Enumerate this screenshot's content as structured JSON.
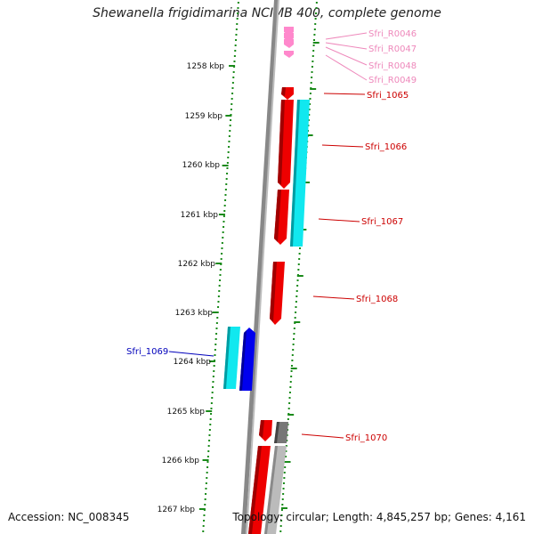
{
  "title": "Shewanella frigidimarina NCIMB 400, complete genome",
  "accession_text": "Accession: NC_008345",
  "topology_text": "Topology: circular; Length: 4,845,257 bp; Genes: 4,161",
  "colors": {
    "ticks": "#1a8a1a",
    "gene_red": "#ee0000",
    "gene_dark_red": "#a00000",
    "gene_cyan": "#11e8ef",
    "gene_blue": "#0000ee",
    "gene_gray": "#777777",
    "gene_light_gray": "#bbbbbb",
    "rna_pink": "#ff88cc",
    "label_pink": "#ee88bb",
    "label_red": "#cc0000",
    "label_blue": "#0000bb"
  },
  "scale": {
    "unit": "kbp",
    "ticks": [
      "1258 kbp",
      "1259 kbp",
      "1260 kbp",
      "1261 kbp",
      "1262 kbp",
      "1263 kbp",
      "1264 kbp",
      "1265 kbp",
      "1266 kbp",
      "1267 kbp"
    ]
  },
  "gene_labels": [
    {
      "text": "Sfri_R0046",
      "color": "label_pink"
    },
    {
      "text": "Sfri_R0047",
      "color": "label_pink"
    },
    {
      "text": "Sfri_R0048",
      "color": "label_pink"
    },
    {
      "text": "Sfri_R0049",
      "color": "label_pink"
    },
    {
      "text": "Sfri_1065",
      "color": "label_red"
    },
    {
      "text": "Sfri_1066",
      "color": "label_red"
    },
    {
      "text": "Sfri_1067",
      "color": "label_red"
    },
    {
      "text": "Sfri_1068",
      "color": "label_red"
    },
    {
      "text": "Sfri_1069",
      "color": "label_blue"
    },
    {
      "text": "Sfri_1070",
      "color": "label_red"
    }
  ]
}
